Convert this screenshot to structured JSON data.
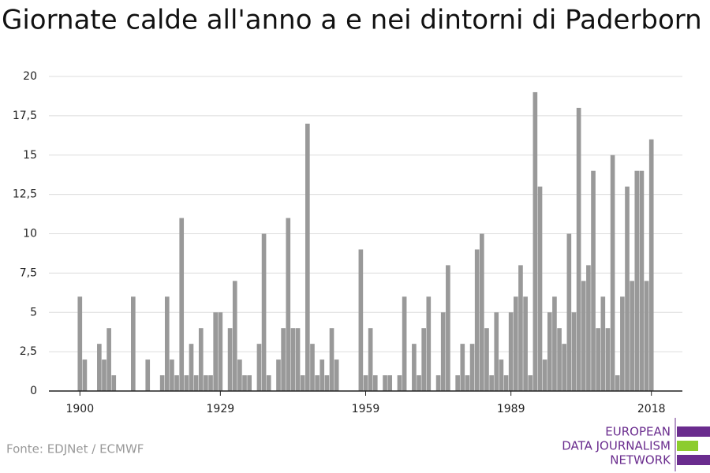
{
  "chart_data": {
    "type": "bar",
    "title": "Giornate calde all'anno a e nei dintorni di Paderborn",
    "source": "Fonte: EDJNet / ECMWF",
    "logo": [
      "EUROPEAN",
      "DATA JOURNALISM",
      "NETWORK"
    ],
    "color": "#999999",
    "grid": true,
    "x": [
      1900,
      1901,
      1902,
      1903,
      1904,
      1905,
      1906,
      1907,
      1908,
      1909,
      1910,
      1911,
      1912,
      1913,
      1914,
      1915,
      1916,
      1917,
      1918,
      1919,
      1920,
      1921,
      1922,
      1923,
      1924,
      1925,
      1926,
      1927,
      1928,
      1929,
      1930,
      1931,
      1932,
      1933,
      1934,
      1935,
      1936,
      1937,
      1938,
      1939,
      1940,
      1941,
      1942,
      1943,
      1944,
      1945,
      1946,
      1947,
      1948,
      1949,
      1950,
      1951,
      1952,
      1953,
      1954,
      1955,
      1956,
      1957,
      1958,
      1959,
      1960,
      1961,
      1962,
      1963,
      1964,
      1965,
      1966,
      1967,
      1968,
      1969,
      1970,
      1971,
      1972,
      1973,
      1974,
      1975,
      1976,
      1977,
      1978,
      1979,
      1980,
      1981,
      1982,
      1983,
      1984,
      1985,
      1986,
      1987,
      1988,
      1989,
      1990,
      1991,
      1992,
      1993,
      1994,
      1995,
      1996,
      1997,
      1998,
      1999,
      2000,
      2001,
      2002,
      2003,
      2004,
      2005,
      2006,
      2007,
      2008,
      2009,
      2010,
      2011,
      2012,
      2013,
      2014,
      2015,
      2016,
      2017,
      2018
    ],
    "values": [
      6,
      2,
      0,
      0,
      3,
      2,
      4,
      1,
      0,
      0,
      0,
      6,
      0,
      0,
      2,
      0,
      0,
      1,
      6,
      2,
      1,
      11,
      1,
      3,
      1,
      4,
      1,
      1,
      5,
      5,
      0,
      4,
      7,
      2,
      1,
      1,
      0,
      3,
      10,
      1,
      0,
      2,
      4,
      11,
      4,
      4,
      1,
      17,
      3,
      1,
      2,
      1,
      4,
      2,
      0,
      0,
      0,
      0,
      9,
      1,
      4,
      1,
      0,
      1,
      1,
      0,
      1,
      6,
      0,
      3,
      1,
      4,
      6,
      0,
      1,
      5,
      8,
      0,
      1,
      3,
      1,
      3,
      9,
      10,
      4,
      1,
      5,
      2,
      1,
      5,
      6,
      8,
      6,
      1,
      19,
      13,
      2,
      5,
      6,
      4,
      3,
      10,
      5,
      18,
      7,
      8,
      14,
      4,
      6,
      4,
      15,
      1,
      6,
      13,
      7,
      14,
      14,
      7,
      16
    ],
    "xlim": [
      1893.6,
      2024.4
    ],
    "xticks": [
      1900,
      1929,
      1959,
      1989,
      2018
    ],
    "ylim": [
      0,
      20
    ],
    "yticks": [
      0,
      {
        "value": 2.5,
        "label": "2,5"
      },
      5,
      {
        "value": 7.5,
        "label": "7,5"
      },
      10,
      {
        "value": 12.5,
        "label": "12,5"
      },
      15,
      {
        "value": 17.5,
        "label": "17,5"
      },
      20
    ]
  }
}
